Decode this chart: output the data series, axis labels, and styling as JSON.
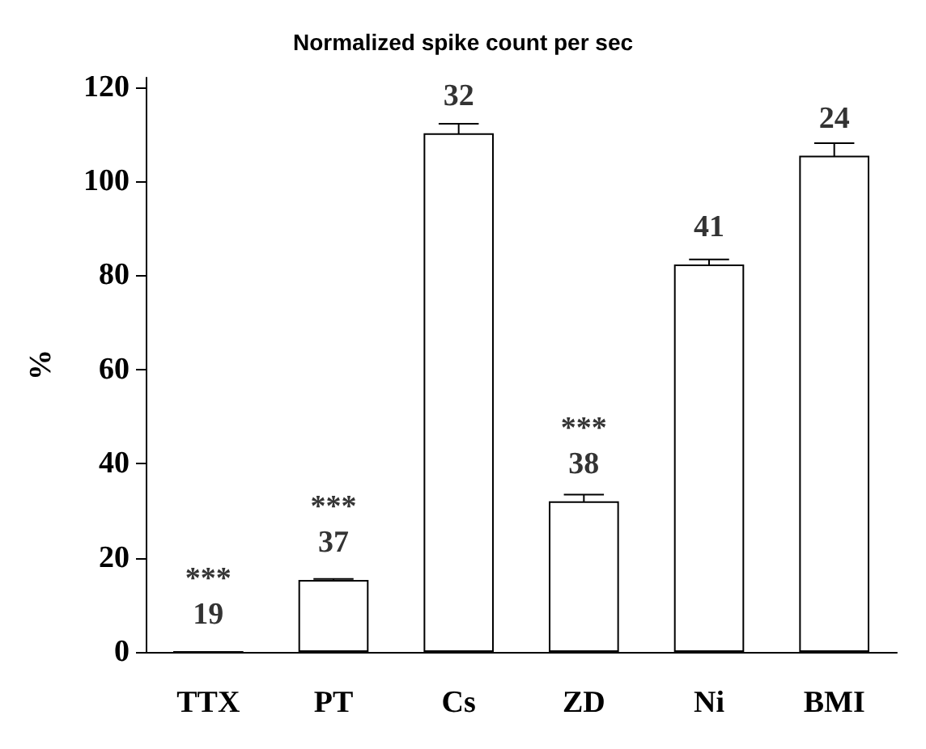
{
  "chart_data": {
    "type": "bar",
    "title": "Normalized spike count per sec",
    "ylabel": "%",
    "categories": [
      "TTX",
      "PT",
      "Cs",
      "ZD",
      "Ni",
      "BMI"
    ],
    "series": [
      {
        "color": "#ffffff",
        "values": [
          0,
          15.3,
          110.2,
          32,
          82.3,
          105.4
        ],
        "errors": [
          null,
          0.2,
          2,
          1.4,
          1.1,
          2.7
        ]
      }
    ],
    "ylim": [
      0,
      122
    ],
    "yticks": [
      0,
      20,
      40,
      60,
      80,
      100,
      120
    ],
    "grid": false,
    "annotations": [
      {
        "text": "***\n19",
        "x": "TTX",
        "y": 0
      },
      {
        "text": "***\n37",
        "x": "PT",
        "y": 15.3
      },
      {
        "text": "32",
        "x": "Cs",
        "y": 110.2
      },
      {
        "text": "***\n38",
        "x": "ZD",
        "y": 32
      },
      {
        "text": "41",
        "x": "Ni",
        "y": 82.3
      },
      {
        "text": "24",
        "x": "BMI",
        "y": 105.4
      }
    ]
  }
}
